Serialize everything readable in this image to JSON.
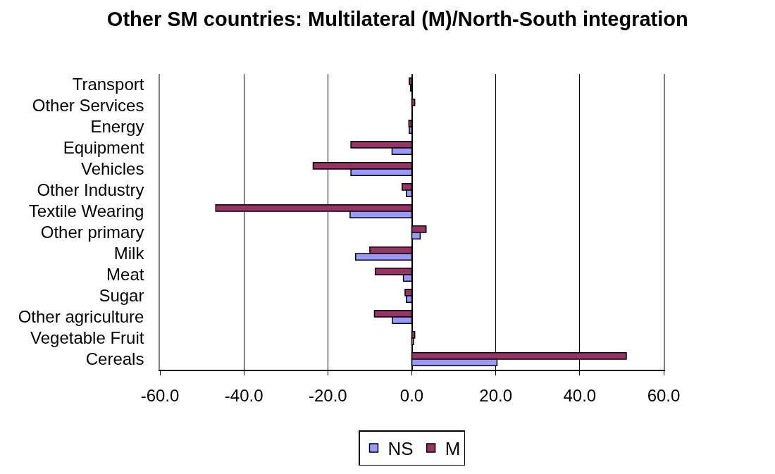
{
  "chart_data": {
    "type": "bar",
    "orientation": "horizontal",
    "title": "Other SM countries: Multilateral (M)/North-South integration",
    "categories": [
      "Transport",
      "Other Services",
      "Energy",
      "Equipment",
      "Vehicles",
      "Other Industry",
      "Textile Wearing",
      "Other primary",
      "Milk",
      "Meat",
      "Sugar",
      "Other agriculture",
      "Vegetable Fruit",
      "Cereals"
    ],
    "series": [
      {
        "name": "NS",
        "color": "#9999ff",
        "values": [
          -0.3,
          null,
          -0.6,
          -4.7,
          -14.5,
          -1.3,
          -14.7,
          2.0,
          -13.4,
          -2.0,
          -1.3,
          -4.6,
          0.4,
          20.3
        ]
      },
      {
        "name": "M",
        "color": "#993366",
        "values": [
          -0.6,
          0.7,
          -0.7,
          -14.5,
          -23.5,
          -2.3,
          -46.7,
          3.4,
          -10.0,
          -8.7,
          -1.6,
          -8.9,
          0.7,
          51.1
        ]
      }
    ],
    "xlim": [
      -60,
      60
    ],
    "xticks": [
      {
        "value": -60,
        "label": "-60.0"
      },
      {
        "value": -40,
        "label": "-40.0"
      },
      {
        "value": -20,
        "label": "-20.0"
      },
      {
        "value": 0,
        "label": "0.0"
      },
      {
        "value": 20,
        "label": "20.0"
      },
      {
        "value": 40,
        "label": "40.0"
      },
      {
        "value": 60,
        "label": "60.0"
      }
    ],
    "grid": "x",
    "legend": "bottom"
  }
}
